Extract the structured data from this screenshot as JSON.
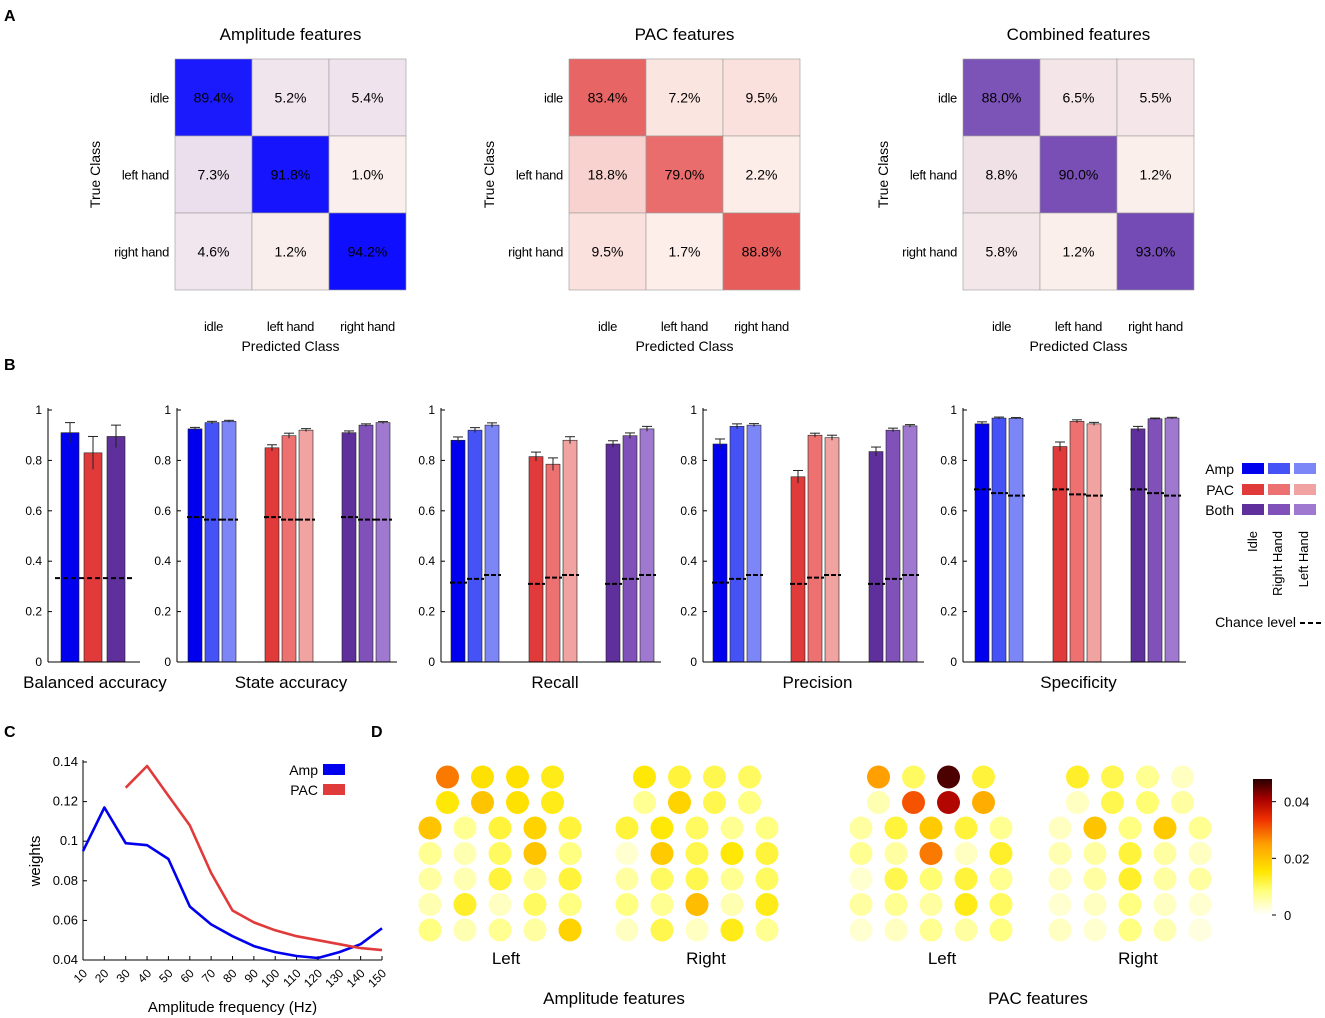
{
  "panels": {
    "a": "A",
    "b": "B",
    "c": "C",
    "d": "D"
  },
  "colors": {
    "amp": [
      "#0000ee",
      "#4552f5",
      "#7d86f7"
    ],
    "pac": [
      "#e03a3a",
      "#ec7170",
      "#f1a3a1"
    ],
    "both": [
      "#5f2f9c",
      "#8051b8",
      "#9f78cf"
    ],
    "cm_amp": "#0000ff",
    "cm_pac": "#e34a4a",
    "cm_both": "#6a3db0",
    "cm_low": "#fdf1ec"
  },
  "chart_data": [
    {
      "id": "confusion_amplitude",
      "type": "heatmap",
      "title": "Amplitude features",
      "xlabel": "Predicted Class",
      "ylabel": "True Class",
      "rows": [
        "idle",
        "left hand",
        "right hand"
      ],
      "cols": [
        "idle",
        "left hand",
        "right hand"
      ],
      "values": [
        [
          89.4,
          5.2,
          5.4
        ],
        [
          7.3,
          91.8,
          1.0
        ],
        [
          4.6,
          1.2,
          94.2
        ]
      ],
      "labels": [
        [
          "89.4%",
          "5.2%",
          "5.4%"
        ],
        [
          "7.3%",
          "91.8%",
          "1.0%"
        ],
        [
          "4.6%",
          "1.2%",
          "94.2%"
        ]
      ]
    },
    {
      "id": "confusion_pac",
      "type": "heatmap",
      "title": "PAC features",
      "xlabel": "Predicted Class",
      "ylabel": "True Class",
      "rows": [
        "idle",
        "left hand",
        "right hand"
      ],
      "cols": [
        "idle",
        "left hand",
        "right hand"
      ],
      "values": [
        [
          83.4,
          7.2,
          9.5
        ],
        [
          18.8,
          79.0,
          2.2
        ],
        [
          9.5,
          1.7,
          88.8
        ]
      ],
      "labels": [
        [
          "83.4%",
          "7.2%",
          "9.5%"
        ],
        [
          "18.8%",
          "79.0%",
          "2.2%"
        ],
        [
          "9.5%",
          "1.7%",
          "88.8%"
        ]
      ]
    },
    {
      "id": "confusion_combined",
      "type": "heatmap",
      "title": "Combined features",
      "xlabel": "Predicted Class",
      "ylabel": "True Class",
      "rows": [
        "idle",
        "left hand",
        "right hand"
      ],
      "cols": [
        "idle",
        "left hand",
        "right hand"
      ],
      "values": [
        [
          88.0,
          6.5,
          5.5
        ],
        [
          8.8,
          90.0,
          1.2
        ],
        [
          5.8,
          1.2,
          93.0
        ]
      ],
      "labels": [
        [
          "88.0%",
          "6.5%",
          "5.5%"
        ],
        [
          "8.8%",
          "90.0%",
          "1.2%"
        ],
        [
          "5.8%",
          "1.2%",
          "93.0%"
        ]
      ]
    },
    {
      "id": "balanced_accuracy",
      "type": "bar",
      "xlabel": "Balanced accuracy",
      "ylim": [
        0,
        1
      ],
      "yticks": [
        "0",
        "0.2",
        "0.4",
        "0.6",
        "0.8",
        "1"
      ],
      "groups": [
        "Amp",
        "PAC",
        "Both"
      ],
      "values": [
        0.91,
        0.83,
        0.895
      ],
      "errors": [
        0.04,
        0.065,
        0.045
      ],
      "chance": 0.333
    },
    {
      "id": "state_accuracy",
      "type": "bar",
      "xlabel": "State accuracy",
      "ylim": [
        0,
        1
      ],
      "groups": [
        "Amp",
        "PAC",
        "Both"
      ],
      "states": [
        "Idle",
        "Right Hand",
        "Left Hand"
      ],
      "values": [
        [
          0.925,
          0.95,
          0.955
        ],
        [
          0.85,
          0.898,
          0.92
        ],
        [
          0.91,
          0.94,
          0.95
        ]
      ],
      "errors": [
        [
          0.006,
          0.005,
          0.004
        ],
        [
          0.012,
          0.01,
          0.006
        ],
        [
          0.007,
          0.005,
          0.004
        ]
      ],
      "chance": [
        [
          0.575,
          0.565,
          0.565
        ],
        [
          0.575,
          0.565,
          0.565
        ],
        [
          0.575,
          0.565,
          0.565
        ]
      ]
    },
    {
      "id": "recall",
      "type": "bar",
      "xlabel": "Recall",
      "ylim": [
        0,
        1
      ],
      "groups": [
        "Amp",
        "PAC",
        "Both"
      ],
      "states": [
        "Idle",
        "Right Hand",
        "Left Hand"
      ],
      "values": [
        [
          0.88,
          0.92,
          0.94
        ],
        [
          0.815,
          0.785,
          0.88
        ],
        [
          0.865,
          0.898,
          0.925
        ]
      ],
      "errors": [
        [
          0.013,
          0.01,
          0.009
        ],
        [
          0.018,
          0.025,
          0.014
        ],
        [
          0.013,
          0.011,
          0.01
        ]
      ],
      "chance": [
        [
          0.315,
          0.33,
          0.345
        ],
        [
          0.31,
          0.335,
          0.345
        ],
        [
          0.31,
          0.33,
          0.345
        ]
      ]
    },
    {
      "id": "precision",
      "type": "bar",
      "xlabel": "Precision",
      "ylim": [
        0,
        1
      ],
      "groups": [
        "Amp",
        "PAC",
        "Both"
      ],
      "states": [
        "Idle",
        "Right Hand",
        "Left Hand"
      ],
      "values": [
        [
          0.865,
          0.935,
          0.94
        ],
        [
          0.735,
          0.9,
          0.89
        ],
        [
          0.835,
          0.92,
          0.937
        ]
      ],
      "errors": [
        [
          0.02,
          0.01,
          0.006
        ],
        [
          0.025,
          0.008,
          0.01
        ],
        [
          0.018,
          0.008,
          0.005
        ]
      ],
      "chance": [
        [
          0.315,
          0.33,
          0.345
        ],
        [
          0.31,
          0.335,
          0.345
        ],
        [
          0.31,
          0.33,
          0.345
        ]
      ]
    },
    {
      "id": "specificity",
      "type": "bar",
      "xlabel": "Specificity",
      "ylim": [
        0,
        1
      ],
      "groups": [
        "Amp",
        "PAC",
        "Both"
      ],
      "states": [
        "Idle",
        "Right Hand",
        "Left Hand"
      ],
      "values": [
        [
          0.945,
          0.968,
          0.967
        ],
        [
          0.855,
          0.955,
          0.945
        ],
        [
          0.925,
          0.965,
          0.968
        ]
      ],
      "errors": [
        [
          0.008,
          0.004,
          0.003
        ],
        [
          0.018,
          0.006,
          0.006
        ],
        [
          0.01,
          0.003,
          0.003
        ]
      ],
      "chance": [
        [
          0.685,
          0.67,
          0.66
        ],
        [
          0.685,
          0.665,
          0.66
        ],
        [
          0.685,
          0.67,
          0.66
        ]
      ]
    },
    {
      "id": "weights_by_frequency",
      "type": "line",
      "xlabel": "Amplitude frequency (Hz)",
      "ylabel": "weights",
      "xlim": [
        10,
        150
      ],
      "ylim": [
        0.04,
        0.14
      ],
      "xticks": [
        10,
        20,
        30,
        40,
        50,
        60,
        70,
        80,
        90,
        100,
        110,
        120,
        130,
        140,
        150
      ],
      "yticks": [
        "0.04",
        "0.06",
        "0.08",
        "0.1",
        "0.12",
        "0.14"
      ],
      "series": [
        {
          "name": "Amp",
          "x": [
            10,
            20,
            30,
            40,
            50,
            60,
            70,
            80,
            90,
            100,
            110,
            120,
            130,
            140,
            150
          ],
          "y": [
            0.095,
            0.117,
            0.099,
            0.098,
            0.091,
            0.067,
            0.058,
            0.052,
            0.047,
            0.044,
            0.042,
            0.041,
            0.044,
            0.048,
            0.056
          ]
        },
        {
          "name": "PAC",
          "x": [
            30,
            40,
            50,
            60,
            70,
            80,
            90,
            100,
            110,
            120,
            130,
            140,
            150
          ],
          "y": [
            0.127,
            0.138,
            0.123,
            0.108,
            0.084,
            0.065,
            0.059,
            0.055,
            0.052,
            0.05,
            0.048,
            0.046,
            0.045
          ]
        }
      ]
    },
    {
      "id": "electrode_weights",
      "type": "heatmap",
      "colorbar_ticks": [
        "0.04",
        "0.02",
        "0"
      ],
      "colorbar_range": [
        0,
        0.048
      ],
      "maps": [
        {
          "group": "Amplitude features",
          "side": "Left",
          "rows": [
            [
              0.028,
              0.016,
              0.016,
              0.014
            ],
            [
              0.015,
              0.02,
              0.016,
              0.014
            ],
            [
              0.02,
              0.007,
              0.012,
              0.018,
              0.012
            ],
            [
              0.007,
              0.005,
              0.01,
              0.02,
              0.008
            ],
            [
              0.006,
              0.005,
              0.012,
              0.006,
              0.012
            ],
            [
              0.005,
              0.013,
              0.004,
              0.01,
              0.008
            ],
            [
              0.008,
              0.005,
              0.007,
              0.006,
              0.018
            ]
          ]
        },
        {
          "group": "Amplitude features",
          "side": "Right",
          "rows": [
            [
              0.015,
              0.012,
              0.011,
              0.01
            ],
            [
              0.007,
              0.018,
              0.011,
              0.008
            ],
            [
              0.012,
              0.015,
              0.01,
              0.007,
              0.008
            ],
            [
              0.003,
              0.019,
              0.011,
              0.015,
              0.012
            ],
            [
              0.006,
              0.01,
              0.011,
              0.007,
              0.01
            ],
            [
              0.008,
              0.007,
              0.021,
              0.005,
              0.014
            ],
            [
              0.004,
              0.011,
              0.004,
              0.014,
              0.007
            ]
          ]
        },
        {
          "group": "PAC features",
          "side": "Left",
          "rows": [
            [
              0.025,
              0.01,
              0.046,
              0.012
            ],
            [
              0.005,
              0.031,
              0.04,
              0.023
            ],
            [
              0.006,
              0.012,
              0.019,
              0.012,
              0.007
            ],
            [
              0.007,
              0.006,
              0.028,
              0.004,
              0.013
            ],
            [
              0.003,
              0.011,
              0.009,
              0.012,
              0.007
            ],
            [
              0.006,
              0.007,
              0.006,
              0.014,
              0.01
            ],
            [
              0.003,
              0.004,
              0.007,
              0.006,
              0.008
            ]
          ]
        },
        {
          "group": "PAC features",
          "side": "Right",
          "rows": [
            [
              0.013,
              0.011,
              0.007,
              0.004
            ],
            [
              0.004,
              0.011,
              0.009,
              0.006
            ],
            [
              0.004,
              0.02,
              0.008,
              0.019,
              0.007
            ],
            [
              0.005,
              0.006,
              0.012,
              0.006,
              0.004
            ],
            [
              0.004,
              0.006,
              0.013,
              0.006,
              0.006
            ],
            [
              0.003,
              0.004,
              0.008,
              0.004,
              0.003
            ],
            [
              0.004,
              0.003,
              0.008,
              0.005,
              0.002
            ]
          ]
        }
      ]
    }
  ],
  "text": {
    "legend_c": {
      "amp": "Amp",
      "pac": "PAC"
    },
    "legend_b": {
      "amp": "Amp",
      "pac": "PAC",
      "both": "Both",
      "idle": "Idle",
      "right": "Right Hand",
      "left": "Left Hand",
      "chance": "Chance level"
    },
    "d": {
      "left": "Left",
      "right": "Right",
      "amp": "Amplitude features",
      "pac": "PAC features"
    }
  }
}
